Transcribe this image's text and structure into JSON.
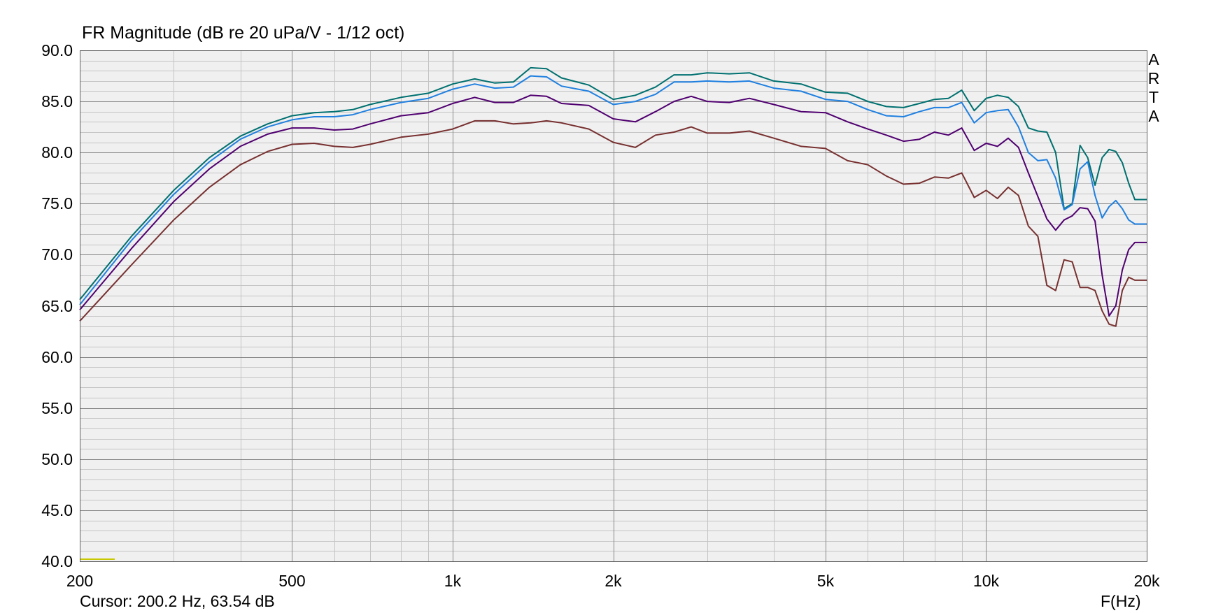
{
  "header": {
    "title": "FR Magnitude (dB re 20 uPa/V - 1/12 oct)"
  },
  "footer": {
    "cursor_text": "Cursor: 200.2 Hz, 63.54 dB",
    "x_unit_label": "F(Hz)"
  },
  "watermark": [
    "A",
    "R",
    "T",
    "A"
  ],
  "colors": {
    "background": "#ffffff",
    "plot_background": "#f0f0f0",
    "major_grid": "#888888",
    "minor_grid": "#c4c4c4",
    "cursor_marker": "#c8c800"
  },
  "chart_data": {
    "type": "line",
    "title": "FR Magnitude (dB re 20 uPa/V - 1/12 oct)",
    "xlabel": "F(Hz)",
    "ylabel": "",
    "x_scale": "log",
    "xlim": [
      200,
      20000
    ],
    "ylim": [
      40,
      90
    ],
    "grid": true,
    "x_ticks": [
      {
        "value": 200,
        "label": "200"
      },
      {
        "value": 500,
        "label": "500"
      },
      {
        "value": 1000,
        "label": "1k"
      },
      {
        "value": 2000,
        "label": "2k"
      },
      {
        "value": 5000,
        "label": "5k"
      },
      {
        "value": 10000,
        "label": "10k"
      },
      {
        "value": 20000,
        "label": "20k"
      }
    ],
    "y_ticks": [
      {
        "value": 90,
        "label": "90.0"
      },
      {
        "value": 85,
        "label": "85.0"
      },
      {
        "value": 80,
        "label": "80.0"
      },
      {
        "value": 75,
        "label": "75.0"
      },
      {
        "value": 70,
        "label": "70.0"
      },
      {
        "value": 65,
        "label": "65.0"
      },
      {
        "value": 60,
        "label": "60.0"
      },
      {
        "value": 55,
        "label": "55.0"
      },
      {
        "value": 50,
        "label": "50.0"
      },
      {
        "value": 45,
        "label": "45.0"
      },
      {
        "value": 40,
        "label": "40.0"
      }
    ],
    "series": [
      {
        "color": "#007070",
        "x": [
          200,
          250,
          300,
          350,
          400,
          450,
          500,
          550,
          600,
          650,
          700,
          800,
          900,
          1000,
          1100,
          1200,
          1300,
          1400,
          1500,
          1600,
          1800,
          2000,
          2200,
          2400,
          2600,
          2800,
          3000,
          3300,
          3600,
          4000,
          4500,
          5000,
          5500,
          6000,
          6500,
          7000,
          7500,
          8000,
          8500,
          9000,
          9500,
          10000,
          10500,
          11000,
          11500,
          12000,
          12500,
          13000,
          13500,
          14000,
          14500,
          15000,
          15500,
          16000,
          16500,
          17000,
          17500,
          18000,
          18500,
          19000,
          19500,
          20000
        ],
        "y": [
          65.6,
          71.8,
          76.3,
          79.5,
          81.6,
          82.8,
          83.6,
          83.9,
          84.0,
          84.2,
          84.7,
          85.4,
          85.8,
          86.7,
          87.2,
          86.8,
          86.9,
          88.3,
          88.2,
          87.3,
          86.6,
          85.2,
          85.6,
          86.4,
          87.6,
          87.6,
          87.8,
          87.7,
          87.8,
          87.0,
          86.7,
          85.9,
          85.8,
          85.0,
          84.5,
          84.4,
          84.8,
          85.2,
          85.3,
          86.1,
          84.1,
          85.3,
          85.6,
          85.4,
          84.5,
          82.4,
          82.1,
          82.0,
          80.0,
          74.5,
          75.0,
          80.7,
          79.5,
          76.8,
          79.5,
          80.3,
          80.1,
          79.0,
          77.0,
          75.4,
          75.4,
          75.4
        ]
      },
      {
        "color": "#2080e0",
        "x": [
          200,
          250,
          300,
          350,
          400,
          450,
          500,
          550,
          600,
          650,
          700,
          800,
          900,
          1000,
          1100,
          1200,
          1300,
          1400,
          1500,
          1600,
          1800,
          2000,
          2200,
          2400,
          2600,
          2800,
          3000,
          3300,
          3600,
          4000,
          4500,
          5000,
          5500,
          6000,
          6500,
          7000,
          7500,
          8000,
          8500,
          9000,
          9500,
          10000,
          10500,
          11000,
          11500,
          12000,
          12500,
          13000,
          13500,
          14000,
          14500,
          15000,
          15500,
          16000,
          16500,
          17000,
          17500,
          18000,
          18500,
          19000,
          19500,
          20000
        ],
        "y": [
          65.1,
          71.4,
          75.9,
          79.1,
          81.3,
          82.5,
          83.2,
          83.5,
          83.5,
          83.7,
          84.2,
          84.9,
          85.3,
          86.2,
          86.7,
          86.3,
          86.4,
          87.5,
          87.4,
          86.5,
          86.0,
          84.7,
          85.0,
          85.7,
          86.9,
          86.9,
          87.0,
          86.9,
          87.0,
          86.3,
          86.0,
          85.2,
          85.0,
          84.2,
          83.6,
          83.5,
          84.0,
          84.4,
          84.4,
          84.9,
          82.9,
          83.9,
          84.1,
          84.2,
          82.5,
          80.0,
          79.2,
          79.3,
          77.5,
          74.4,
          74.9,
          78.4,
          79.1,
          75.8,
          73.6,
          74.7,
          75.3,
          74.5,
          73.4,
          73.0,
          73.0,
          73.0
        ]
      },
      {
        "color": "#500070",
        "x": [
          200,
          250,
          300,
          350,
          400,
          450,
          500,
          550,
          600,
          650,
          700,
          800,
          900,
          1000,
          1100,
          1200,
          1300,
          1400,
          1500,
          1600,
          1800,
          2000,
          2200,
          2400,
          2600,
          2800,
          3000,
          3300,
          3600,
          4000,
          4500,
          5000,
          5500,
          6000,
          6500,
          7000,
          7500,
          8000,
          8500,
          9000,
          9500,
          10000,
          10500,
          11000,
          11500,
          12000,
          12500,
          13000,
          13500,
          14000,
          14500,
          15000,
          15500,
          16000,
          16500,
          17000,
          17500,
          18000,
          18500,
          19000,
          19500,
          20000
        ],
        "y": [
          64.6,
          70.6,
          75.2,
          78.4,
          80.6,
          81.8,
          82.4,
          82.4,
          82.2,
          82.3,
          82.8,
          83.6,
          83.9,
          84.8,
          85.4,
          84.9,
          84.9,
          85.6,
          85.5,
          84.8,
          84.6,
          83.3,
          83.0,
          84.0,
          85.0,
          85.5,
          85.0,
          84.9,
          85.3,
          84.7,
          84.0,
          83.9,
          83.0,
          82.3,
          81.7,
          81.1,
          81.3,
          82.0,
          81.7,
          82.4,
          80.2,
          80.9,
          80.6,
          81.4,
          80.5,
          78.0,
          75.7,
          73.5,
          72.4,
          73.4,
          73.8,
          74.6,
          74.5,
          73.3,
          68.0,
          64.0,
          65.0,
          68.5,
          70.5,
          71.2,
          71.2,
          71.2
        ]
      },
      {
        "color": "#783030",
        "x": [
          200,
          250,
          300,
          350,
          400,
          450,
          500,
          550,
          600,
          650,
          700,
          800,
          900,
          1000,
          1100,
          1200,
          1300,
          1400,
          1500,
          1600,
          1800,
          2000,
          2200,
          2400,
          2600,
          2800,
          3000,
          3300,
          3600,
          4000,
          4500,
          5000,
          5500,
          6000,
          6500,
          7000,
          7500,
          8000,
          8500,
          9000,
          9500,
          10000,
          10500,
          11000,
          11500,
          12000,
          12500,
          13000,
          13500,
          14000,
          14500,
          15000,
          15500,
          16000,
          16500,
          17000,
          17500,
          18000,
          18500,
          19000,
          19500,
          20000
        ],
        "y": [
          63.5,
          69.0,
          73.4,
          76.6,
          78.8,
          80.1,
          80.8,
          80.9,
          80.6,
          80.5,
          80.8,
          81.5,
          81.8,
          82.3,
          83.1,
          83.1,
          82.8,
          82.9,
          83.1,
          82.9,
          82.3,
          81.0,
          80.5,
          81.7,
          82.0,
          82.5,
          81.9,
          81.9,
          82.1,
          81.4,
          80.6,
          80.4,
          79.2,
          78.8,
          77.7,
          76.9,
          77.0,
          77.6,
          77.5,
          78.0,
          75.6,
          76.3,
          75.5,
          76.6,
          75.8,
          72.8,
          71.8,
          67.0,
          66.5,
          69.5,
          69.3,
          66.8,
          66.8,
          66.5,
          64.5,
          63.2,
          63.0,
          66.5,
          67.8,
          67.5,
          67.5,
          67.5
        ]
      }
    ]
  }
}
